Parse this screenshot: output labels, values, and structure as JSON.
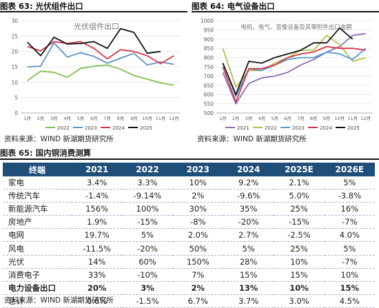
{
  "fig63": {
    "heading": "图表 63: 光伏组件出口",
    "source": "资料来源：WIND 新湖期货研究所"
  },
  "fig64": {
    "heading": "图表 64: 电气设备出口",
    "source": "资料来源：WIND 新湖期货研究所"
  },
  "fig65": {
    "heading": "图表 65: 国内铜消费测算",
    "source": "资料来源：WIND 新湖期货研究所",
    "columns": [
      "终端",
      "2021",
      "2022",
      "2023",
      "2024",
      "2025E",
      "2026E"
    ],
    "rows": [
      {
        "cells": [
          "家电",
          "3.4%",
          "3.3%",
          "10%",
          "9.2%",
          "2.1%",
          "5%"
        ],
        "bold": false
      },
      {
        "cells": [
          "传统汽车",
          "-1.4%",
          "-9.14%",
          "2%",
          "-9.6%",
          "5.0%",
          "-3.8%"
        ],
        "bold": false
      },
      {
        "cells": [
          "新能源汽车",
          "156%",
          "100%",
          "30%",
          "35%",
          "25%",
          "16%"
        ],
        "bold": false
      },
      {
        "cells": [
          "房地产",
          "1.9%",
          "-15%",
          "-8%",
          "-20%",
          "-15%",
          "-7%"
        ],
        "bold": false
      },
      {
        "cells": [
          "电网",
          "19.7%",
          "5%",
          "2.0%",
          "2.7%",
          "-2.5%",
          "4.0%"
        ],
        "bold": false
      },
      {
        "cells": [
          "风电",
          "-11.5%",
          "-20%",
          "50%",
          "5%",
          "25%",
          "5%"
        ],
        "bold": false
      },
      {
        "cells": [
          "光伏",
          "14%",
          "60%",
          "150%",
          "28%",
          "10%",
          "-7%"
        ],
        "bold": false
      },
      {
        "cells": [
          "消费电子",
          "33%",
          "-10%",
          "7%",
          "15%",
          "15%",
          "10%"
        ],
        "bold": false
      },
      {
        "cells": [
          "电力设备出口",
          "20%",
          "3%",
          "2%",
          "13%",
          "10%",
          "15%"
        ],
        "bold": true
      },
      {
        "cells": [
          "总计",
          "0.6%",
          "-1.5%",
          "6.7%",
          "3.7%",
          "3.0%",
          "4.5%"
        ],
        "bold": false
      }
    ],
    "header_color": "#1f4e79"
  },
  "chart_data": [
    {
      "type": "line",
      "title": "光伏组件出口",
      "x": [
        "1月",
        "2月",
        "3月",
        "4月",
        "5月",
        "6月",
        "7月",
        "8月",
        "9月",
        "10月",
        "11月",
        "12月"
      ],
      "ylim": [
        0,
        30
      ],
      "yticks": [
        0,
        5,
        10,
        15,
        20,
        25,
        30
      ],
      "grid": true,
      "legend": "bottom",
      "series": [
        {
          "name": "2022",
          "color": "#7fbf50",
          "values": [
            10.5,
            13.6,
            13.2,
            11.6,
            14.5,
            15.2,
            15.6,
            14.2,
            12.2,
            11.0,
            9.8,
            9.0
          ]
        },
        {
          "name": "2023",
          "color": "#5a8fc9",
          "values": [
            15.0,
            15.2,
            22.8,
            18.2,
            19.6,
            18.4,
            16.2,
            17.8,
            19.4,
            15.6,
            16.6,
            15.8
          ]
        },
        {
          "name": "2024",
          "color": "#d7334a",
          "values": [
            21.6,
            20.2,
            23.2,
            22.6,
            23.2,
            21.0,
            17.6,
            20.6,
            20.0,
            18.6,
            16.0,
            18.6
          ]
        },
        {
          "name": "2025",
          "color": "#111111",
          "values": [
            23.0,
            18.6,
            24.6,
            22.4,
            22.6,
            23.2,
            21.0,
            27.4,
            26.2,
            19.4,
            20.0,
            null
          ]
        }
      ]
    },
    {
      "type": "line",
      "title": "电机、电气、音像设备及其零附件出口金额",
      "x": [
        "1月",
        "2月",
        "3月",
        "4月",
        "5月",
        "6月",
        "7月",
        "8月",
        "9月",
        "10月",
        "11月",
        "12月"
      ],
      "ylim": [
        500,
        1000
      ],
      "yticks": [
        500,
        550,
        600,
        650,
        700,
        750,
        800,
        850,
        900,
        950,
        1000
      ],
      "grid": true,
      "legend": "bottom",
      "series": [
        {
          "name": "2021",
          "color": "#8e6bb7",
          "values": [
            720,
            550,
            660,
            690,
            700,
            720,
            760,
            790,
            830,
            860,
            920,
            930
          ]
        },
        {
          "name": "2022",
          "color": "#b4bf4a",
          "values": [
            850,
            640,
            730,
            730,
            770,
            800,
            840,
            840,
            920,
            870,
            780,
            800
          ]
        },
        {
          "name": "2023",
          "color": "#4e9bd6",
          "values": [
            770,
            590,
            740,
            730,
            760,
            790,
            800,
            800,
            830,
            820,
            790,
            850
          ]
        },
        {
          "name": "2024",
          "color": "#d7334a",
          "values": [
            750,
            560,
            740,
            740,
            760,
            800,
            820,
            830,
            860,
            850,
            850,
            840
          ]
        },
        {
          "name": "2025",
          "color": "#111111",
          "values": [
            770,
            600,
            780,
            770,
            800,
            820,
            840,
            880,
            880,
            960,
            900,
            null
          ]
        }
      ]
    }
  ]
}
